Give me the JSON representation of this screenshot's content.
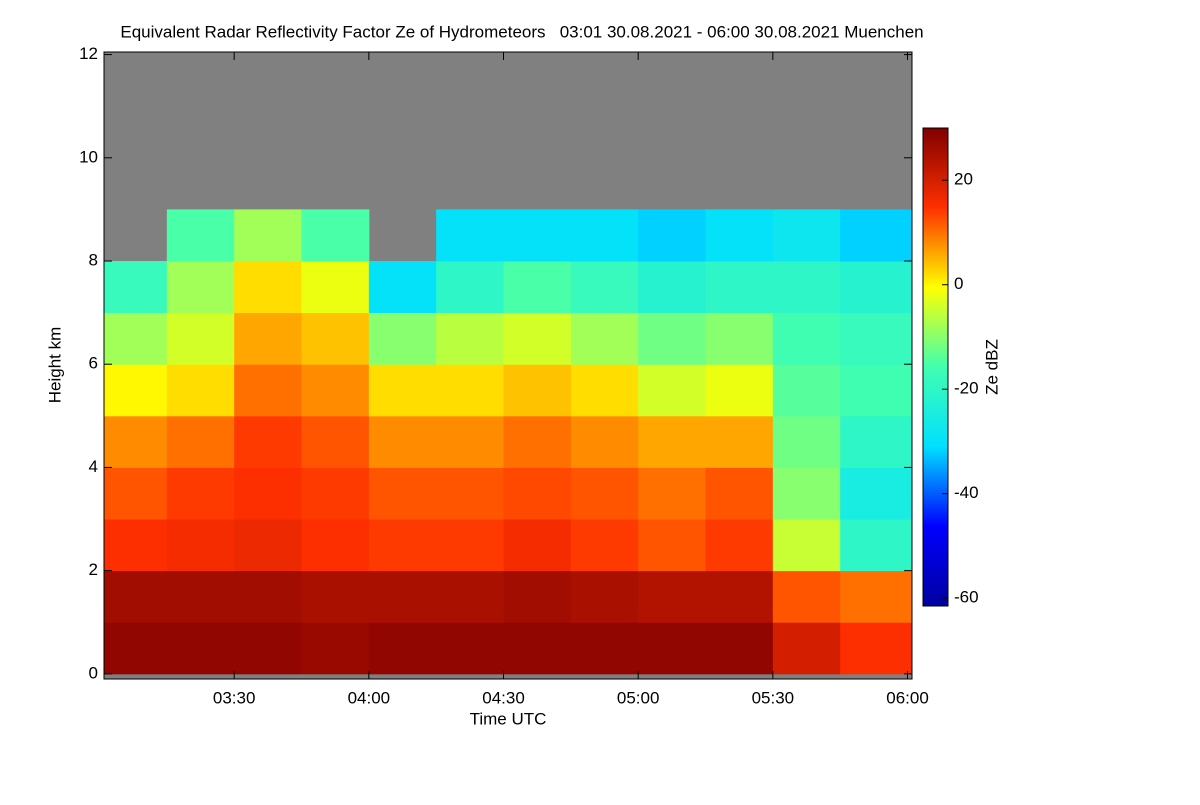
{
  "chart_data": {
    "type": "heatmap",
    "title": "Equivalent Radar Reflectivity Factor Ze of Hydrometeors   03:01 30.08.2021 - 06:00 30.08.2021 Muenchen",
    "x_label": "Time UTC",
    "y_label": "Height km",
    "colorbar_label": "Ze dBZ",
    "xlim": [
      181,
      361
    ],
    "xticks": [
      {
        "value": 210,
        "label": "03:30"
      },
      {
        "value": 240,
        "label": "04:00"
      },
      {
        "value": 270,
        "label": "04:30"
      },
      {
        "value": 300,
        "label": "05:00"
      },
      {
        "value": 330,
        "label": "05:30"
      },
      {
        "value": 360,
        "label": "06:00"
      }
    ],
    "ylim": [
      -0.1,
      12.05
    ],
    "yticks": [
      0,
      2,
      4,
      6,
      8,
      10,
      12
    ],
    "x_edges": [
      181,
      195,
      210,
      225,
      240,
      255,
      270,
      285,
      300,
      315,
      330,
      345,
      361
    ],
    "y_edges": [
      0,
      1,
      2,
      3,
      4,
      5,
      6,
      7,
      8,
      9,
      10,
      11,
      12
    ],
    "z": [
      [
        28,
        28,
        28,
        27,
        28,
        28,
        28,
        28,
        28,
        28,
        20,
        15
      ],
      [
        26,
        26,
        26,
        25,
        25,
        25,
        26,
        25,
        24,
        24,
        12,
        10
      ],
      [
        15,
        16,
        17,
        15,
        14,
        14,
        16,
        14,
        12,
        14,
        -5,
        -20
      ],
      [
        12,
        14,
        15,
        14,
        12,
        12,
        13,
        12,
        10,
        12,
        -10,
        -25
      ],
      [
        8,
        10,
        14,
        12,
        8,
        8,
        10,
        8,
        6,
        6,
        -12,
        -20
      ],
      [
        0,
        2,
        10,
        8,
        2,
        2,
        4,
        2,
        -4,
        -2,
        -14,
        -16
      ],
      [
        -8,
        -4,
        6,
        4,
        -10,
        -6,
        -4,
        -8,
        -12,
        -10,
        -16,
        -18
      ],
      [
        -18,
        -8,
        2,
        -2,
        -30,
        -20,
        -15,
        -18,
        -22,
        -20,
        -20,
        -22
      ],
      [
        null,
        -15,
        -8,
        -15,
        null,
        -30,
        -30,
        -30,
        -32,
        -30,
        -28,
        -32
      ],
      [
        null,
        null,
        null,
        null,
        null,
        null,
        null,
        null,
        null,
        null,
        null,
        null
      ],
      [
        null,
        null,
        null,
        null,
        null,
        null,
        null,
        null,
        null,
        null,
        null,
        null
      ],
      [
        null,
        null,
        null,
        null,
        null,
        null,
        null,
        null,
        null,
        null,
        null,
        null
      ]
    ],
    "clim": [
      -61.5,
      30
    ],
    "cticks": [
      -60,
      -40,
      -20,
      0,
      20
    ],
    "colormap": [
      "#0000a0",
      "#0000ff",
      "#00e0ff",
      "#40ffb0",
      "#ffff00",
      "#ff3000",
      "#800000"
    ],
    "missing_color": "#808080"
  }
}
